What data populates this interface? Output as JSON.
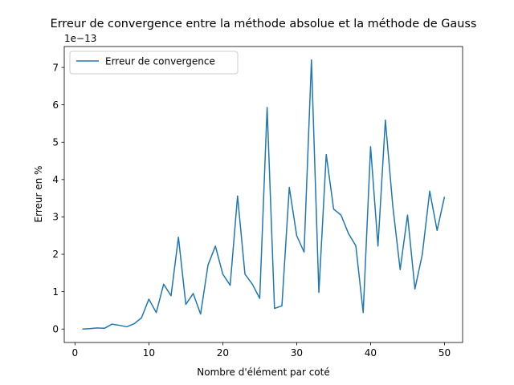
{
  "chart_data": {
    "type": "line",
    "title": "Erreur de convergence entre la méthode absolue et la méthode de Gauss",
    "xlabel": "Nombre d'élément par coté",
    "ylabel": "Erreur en %",
    "y_offset_label": "1e−13",
    "y_scale": 1e-13,
    "xlim": [
      -1.45,
      52.45
    ],
    "ylim": [
      -0.36,
      7.56
    ],
    "x_ticks": [
      0,
      10,
      20,
      30,
      40,
      50
    ],
    "y_ticks": [
      0,
      1,
      2,
      3,
      4,
      5,
      6,
      7
    ],
    "grid": false,
    "legend_position": "upper-left",
    "series": [
      {
        "name": "Erreur de convergence",
        "color": "#1f77b4",
        "x": [
          1,
          2,
          3,
          4,
          5,
          6,
          7,
          8,
          9,
          10,
          11,
          12,
          13,
          14,
          15,
          16,
          17,
          18,
          19,
          20,
          21,
          22,
          23,
          24,
          25,
          26,
          27,
          28,
          29,
          30,
          31,
          32,
          33,
          34,
          35,
          36,
          37,
          38,
          39,
          40,
          41,
          42,
          43,
          44,
          45,
          46,
          47,
          48,
          49,
          50
        ],
        "y": [
          0.0,
          0.01,
          0.03,
          0.02,
          0.13,
          0.1,
          0.06,
          0.14,
          0.3,
          0.8,
          0.44,
          1.2,
          0.89,
          2.46,
          0.66,
          0.95,
          0.4,
          1.71,
          2.22,
          1.47,
          1.17,
          3.56,
          1.47,
          1.2,
          0.82,
          5.93,
          0.55,
          0.62,
          3.79,
          2.5,
          2.06,
          7.2,
          0.98,
          4.67,
          3.21,
          3.05,
          2.56,
          2.23,
          0.44,
          4.88,
          2.22,
          5.59,
          3.3,
          1.59,
          3.05,
          1.07,
          2.0,
          3.69,
          2.64,
          3.54
        ]
      }
    ]
  }
}
